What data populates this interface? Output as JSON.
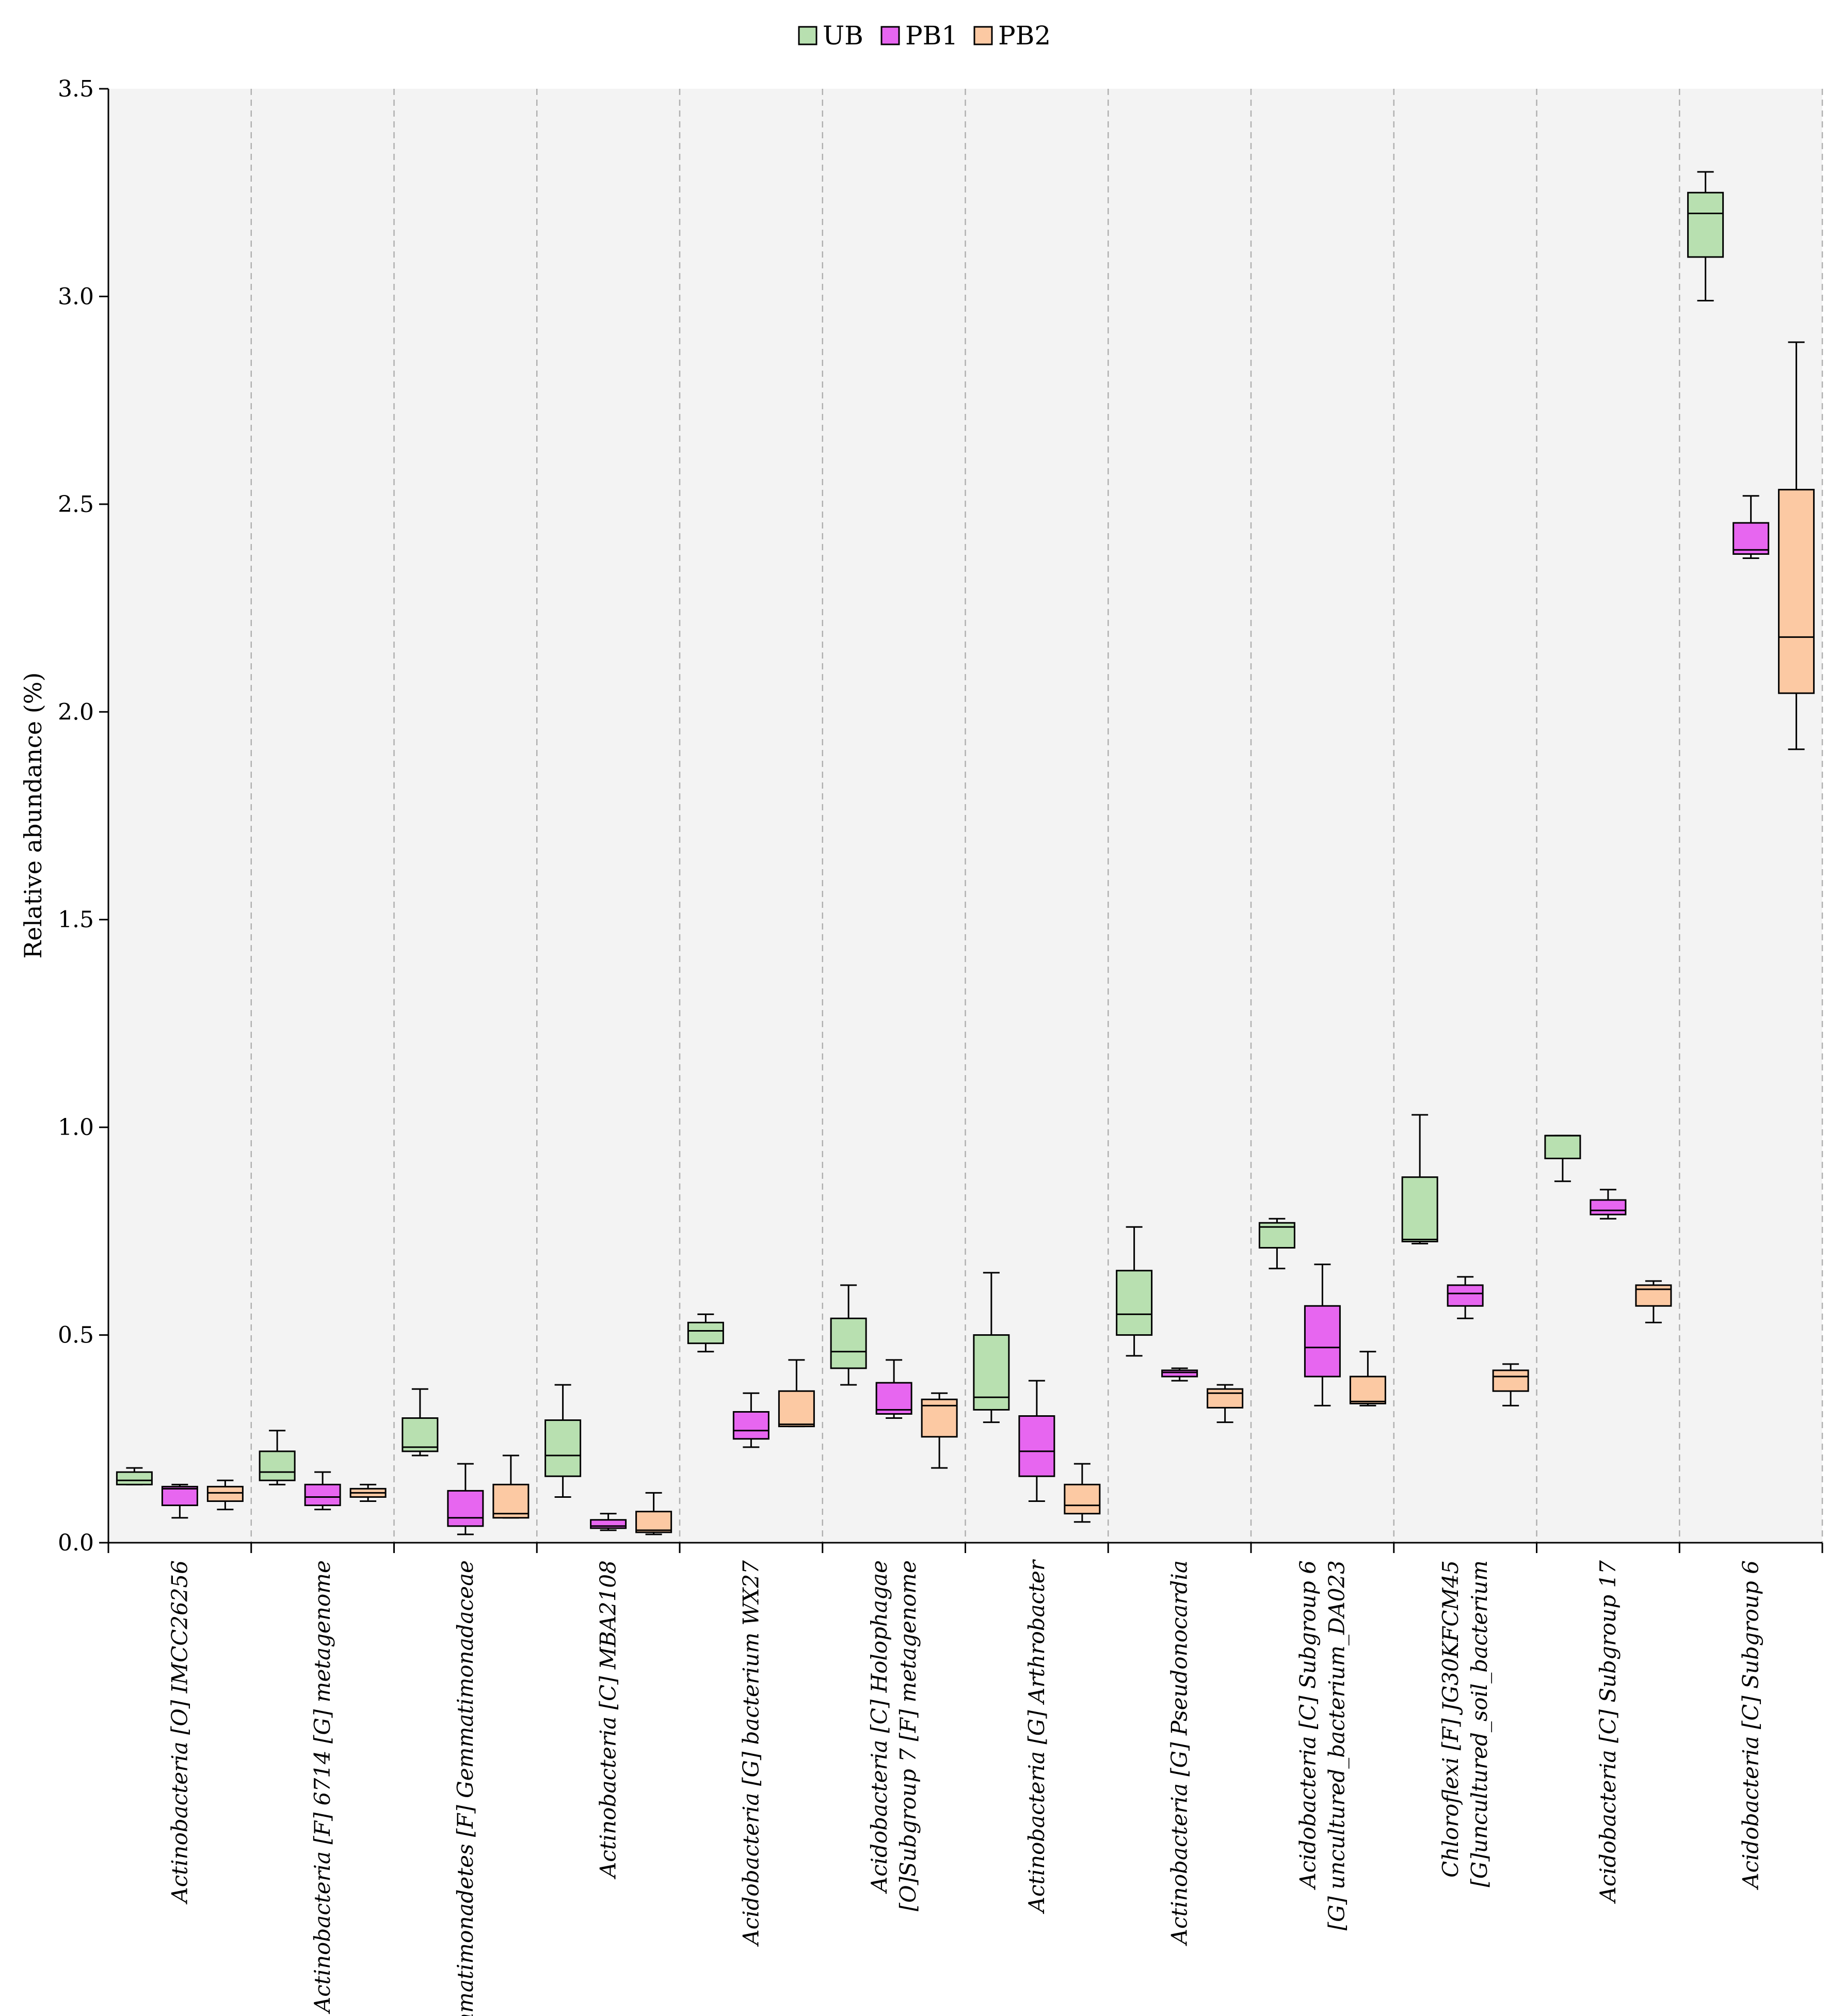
{
  "chart_data": {
    "type": "boxplot",
    "ylabel": "Relative abundance (%)",
    "xlabel": "",
    "ylim": [
      0,
      3.5
    ],
    "yticks": [
      "0.0",
      "0.5",
      "1.0",
      "1.5",
      "2.0",
      "2.5",
      "3.0",
      "3.5"
    ],
    "grid": "vertical dashed separators between categories",
    "legend_position": "top-center",
    "series": [
      {
        "name": "UB",
        "color": "#b8e0b0"
      },
      {
        "name": "PB1",
        "color": "#e766f0"
      },
      {
        "name": "PB2",
        "color": "#fcc9a3"
      }
    ],
    "categories": [
      {
        "label_lines": [
          "Actinobacteria [O] IMCC26256"
        ],
        "boxes": [
          {
            "min": 0.14,
            "q1": 0.14,
            "median": 0.15,
            "q3": 0.17,
            "max": 0.18
          },
          {
            "min": 0.06,
            "q1": 0.09,
            "median": 0.13,
            "q3": 0.135,
            "max": 0.14
          },
          {
            "min": 0.08,
            "q1": 0.1,
            "median": 0.12,
            "q3": 0.135,
            "max": 0.15
          }
        ]
      },
      {
        "label_lines": [
          "Actinobacteria [F] 6714 [G] metagenome"
        ],
        "boxes": [
          {
            "min": 0.14,
            "q1": 0.15,
            "median": 0.17,
            "q3": 0.22,
            "max": 0.27
          },
          {
            "min": 0.08,
            "q1": 0.09,
            "median": 0.11,
            "q3": 0.14,
            "max": 0.17
          },
          {
            "min": 0.1,
            "q1": 0.11,
            "median": 0.12,
            "q3": 0.13,
            "max": 0.14
          }
        ]
      },
      {
        "label_lines": [
          "Gemmatimonadetes [F] Gemmatimonadaceae"
        ],
        "boxes": [
          {
            "min": 0.21,
            "q1": 0.22,
            "median": 0.23,
            "q3": 0.3,
            "max": 0.37
          },
          {
            "min": 0.02,
            "q1": 0.04,
            "median": 0.06,
            "q3": 0.125,
            "max": 0.19
          },
          {
            "min": 0.06,
            "q1": 0.06,
            "median": 0.07,
            "q3": 0.14,
            "max": 0.21
          }
        ]
      },
      {
        "label_lines": [
          "Actinobacteria [C] MBA2108"
        ],
        "boxes": [
          {
            "min": 0.11,
            "q1": 0.16,
            "median": 0.21,
            "q3": 0.295,
            "max": 0.38
          },
          {
            "min": 0.03,
            "q1": 0.035,
            "median": 0.04,
            "q3": 0.055,
            "max": 0.07
          },
          {
            "min": 0.02,
            "q1": 0.025,
            "median": 0.03,
            "q3": 0.075,
            "max": 0.12
          }
        ]
      },
      {
        "label_lines": [
          "Acidobacteria [G] bacterium WX27"
        ],
        "boxes": [
          {
            "min": 0.46,
            "q1": 0.48,
            "median": 0.51,
            "q3": 0.53,
            "max": 0.55
          },
          {
            "min": 0.23,
            "q1": 0.25,
            "median": 0.27,
            "q3": 0.315,
            "max": 0.36
          },
          {
            "min": 0.28,
            "q1": 0.28,
            "median": 0.285,
            "q3": 0.365,
            "max": 0.44
          }
        ]
      },
      {
        "label_lines": [
          "Acidobacteria [C] Holophagae",
          "[O]Subgroup 7 [F] metagenome"
        ],
        "boxes": [
          {
            "min": 0.38,
            "q1": 0.42,
            "median": 0.46,
            "q3": 0.54,
            "max": 0.62
          },
          {
            "min": 0.3,
            "q1": 0.31,
            "median": 0.32,
            "q3": 0.385,
            "max": 0.44
          },
          {
            "min": 0.18,
            "q1": 0.255,
            "median": 0.33,
            "q3": 0.345,
            "max": 0.36
          }
        ]
      },
      {
        "label_lines": [
          "Actinobacteria [G] Arthrobacter"
        ],
        "boxes": [
          {
            "min": 0.29,
            "q1": 0.32,
            "median": 0.35,
            "q3": 0.5,
            "max": 0.65
          },
          {
            "min": 0.1,
            "q1": 0.16,
            "median": 0.22,
            "q3": 0.305,
            "max": 0.39
          },
          {
            "min": 0.05,
            "q1": 0.07,
            "median": 0.09,
            "q3": 0.14,
            "max": 0.19
          }
        ]
      },
      {
        "label_lines": [
          "Actinobacteria [G] Pseudonocardia"
        ],
        "boxes": [
          {
            "min": 0.45,
            "q1": 0.5,
            "median": 0.55,
            "q3": 0.655,
            "max": 0.76
          },
          {
            "min": 0.39,
            "q1": 0.4,
            "median": 0.41,
            "q3": 0.415,
            "max": 0.42
          },
          {
            "min": 0.29,
            "q1": 0.325,
            "median": 0.36,
            "q3": 0.37,
            "max": 0.38
          }
        ]
      },
      {
        "label_lines": [
          "Acidobacteria [C] Subgroup 6",
          "[G] uncultured_bacterium_DA023"
        ],
        "boxes": [
          {
            "min": 0.66,
            "q1": 0.71,
            "median": 0.76,
            "q3": 0.77,
            "max": 0.78
          },
          {
            "min": 0.33,
            "q1": 0.4,
            "median": 0.47,
            "q3": 0.57,
            "max": 0.67
          },
          {
            "min": 0.33,
            "q1": 0.335,
            "median": 0.34,
            "q3": 0.4,
            "max": 0.46
          }
        ]
      },
      {
        "label_lines": [
          "Chloroflexi [F] JG30KFCM45",
          "[G]uncultured_soil_bacterium"
        ],
        "boxes": [
          {
            "min": 0.72,
            "q1": 0.725,
            "median": 0.73,
            "q3": 0.88,
            "max": 1.03
          },
          {
            "min": 0.54,
            "q1": 0.57,
            "median": 0.6,
            "q3": 0.62,
            "max": 0.64
          },
          {
            "min": 0.33,
            "q1": 0.365,
            "median": 0.4,
            "q3": 0.415,
            "max": 0.43
          }
        ]
      },
      {
        "label_lines": [
          "Acidobacteria [C] Subgroup 17"
        ],
        "boxes": [
          {
            "min": 0.87,
            "q1": 0.925,
            "median": 0.98,
            "q3": 0.98,
            "max": 0.98
          },
          {
            "min": 0.78,
            "q1": 0.79,
            "median": 0.8,
            "q3": 0.825,
            "max": 0.85
          },
          {
            "min": 0.53,
            "q1": 0.57,
            "median": 0.61,
            "q3": 0.62,
            "max": 0.63
          }
        ]
      },
      {
        "label_lines": [
          "Acidobacteria [C] Subgroup 6"
        ],
        "boxes": [
          {
            "min": 2.99,
            "q1": 3.095,
            "median": 3.2,
            "q3": 3.25,
            "max": 3.3
          },
          {
            "min": 2.37,
            "q1": 2.38,
            "median": 2.39,
            "q3": 2.455,
            "max": 2.52
          },
          {
            "min": 1.91,
            "q1": 2.045,
            "median": 2.18,
            "q3": 2.535,
            "max": 2.89
          }
        ]
      }
    ]
  }
}
